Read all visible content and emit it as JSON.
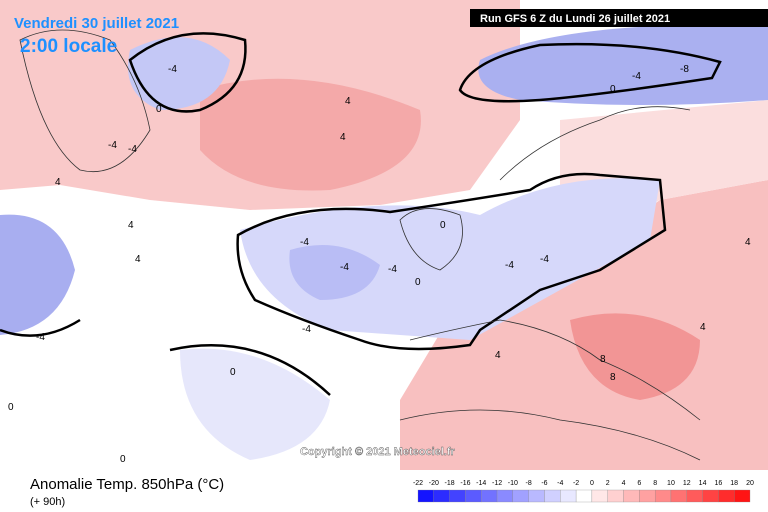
{
  "header": {
    "date": "Vendredi 30 juillet 2021",
    "time": "2:00 locale",
    "run": "Run GFS 6 Z du Lundi 26 juillet 2021"
  },
  "copyright": "Copyright © 2021 Meteociel.fr",
  "footer": {
    "title": "Anomalie Temp. 850hPa (°C)",
    "lead": "(+ 90h)"
  },
  "colorbar": {
    "labels": [
      -22,
      -20,
      -18,
      -16,
      -14,
      -12,
      -10,
      -8,
      -6,
      -4,
      -2,
      0,
      2,
      4,
      6,
      8,
      10,
      12,
      14,
      16,
      18,
      20
    ]
  },
  "contour_labels": [
    -4,
    0,
    -4,
    -4,
    4,
    4,
    4,
    -4,
    -4,
    -4,
    0,
    -4,
    0,
    -4,
    -4,
    8,
    8,
    4,
    4,
    4,
    0,
    -8,
    4,
    4,
    -4,
    -4,
    0,
    0,
    0
  ]
}
